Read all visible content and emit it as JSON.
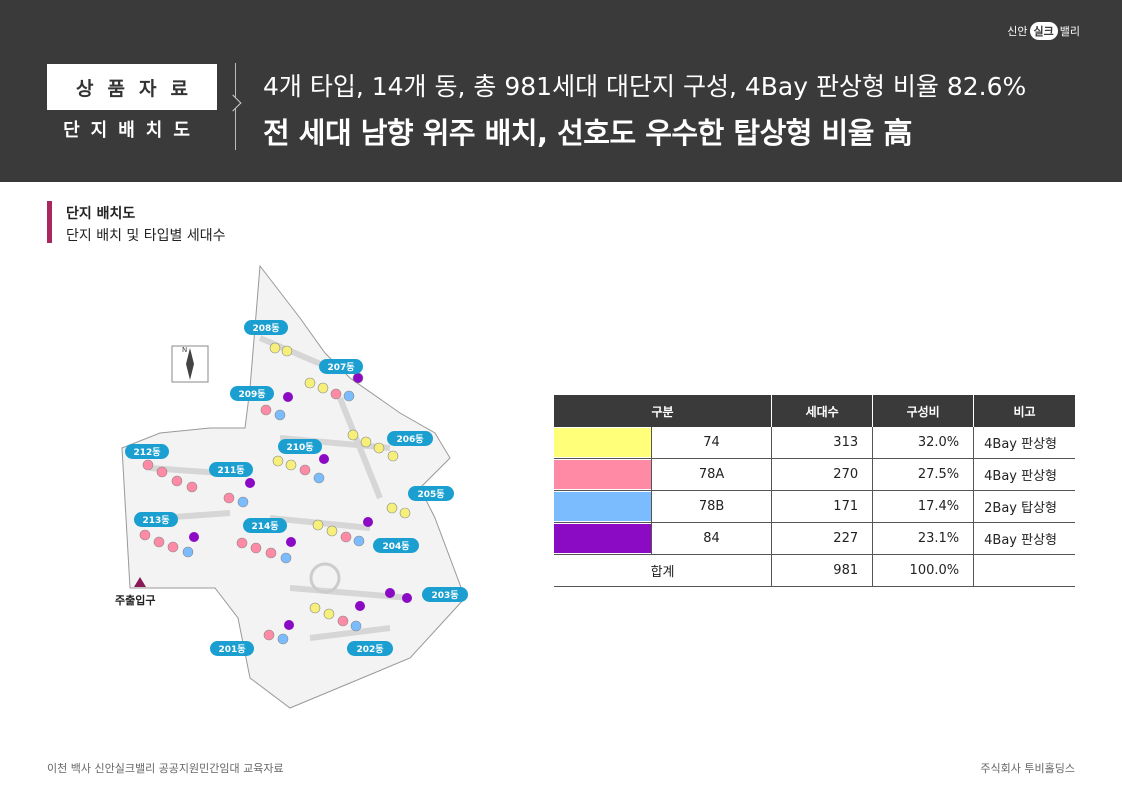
{
  "brand": {
    "left": "신안",
    "mid": "실크",
    "right": "밸리"
  },
  "header": {
    "tag": "상품자료",
    "tag_sub": "단지배치도",
    "headline1": "4개 타입, 14개 동, 총 981세대 대단지 구성, 4Bay 판상형 비율 82.6%",
    "headline2": "전 세대 남향 위주 배치, 선호도 우수한 탑상형 비율 高"
  },
  "section": {
    "title": "단지 배치도",
    "subtitle": "단지 배치 및 타입별 세대수"
  },
  "map": {
    "entrance_label": "주출입구",
    "compass": "N",
    "buildings": [
      "208동",
      "207동",
      "209동",
      "206동",
      "210동",
      "212동",
      "211동",
      "205동",
      "213동",
      "214동",
      "204동",
      "203동",
      "201동",
      "202동"
    ]
  },
  "table": {
    "headers": [
      "구분",
      "세대수",
      "구성비",
      "비고"
    ],
    "rows": [
      {
        "color": "#ffff7a",
        "type": "74",
        "units": "313",
        "ratio": "32.0%",
        "note": "4Bay 판상형"
      },
      {
        "color": "#ff8aa6",
        "type": "78A",
        "units": "270",
        "ratio": "27.5%",
        "note": "4Bay 판상형"
      },
      {
        "color": "#7bbcff",
        "type": "78B",
        "units": "171",
        "ratio": "17.4%",
        "note": "2Bay 탑상형"
      },
      {
        "color": "#8b0ac4",
        "type": "84",
        "units": "227",
        "ratio": "23.1%",
        "note": "4Bay 판상형"
      }
    ],
    "total": {
      "label": "합계",
      "units": "981",
      "ratio": "100.0%",
      "note": ""
    }
  },
  "footer": {
    "left": "이천 백사 신안실크밸리 공공지원민간임대 교육자료",
    "right": "주식회사 투비홀딩스"
  }
}
